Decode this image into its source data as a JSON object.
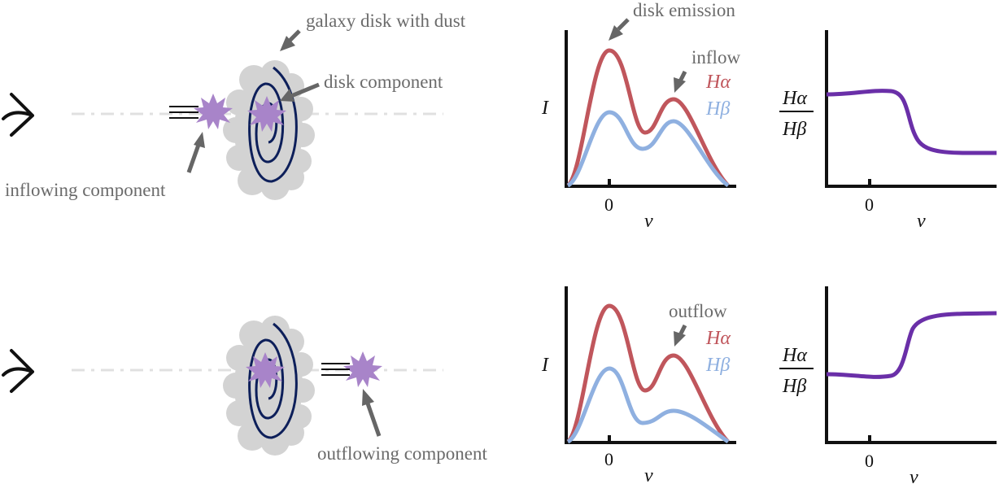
{
  "labels": {
    "galaxy_disk": "galaxy disk with dust",
    "disk_component": "disk component",
    "inflowing_component": "inflowing component",
    "outflowing_component": "outflowing component",
    "disk_emission": "disk emission",
    "inflow": "inflow",
    "outflow": "outflow"
  },
  "math": {
    "intensity": "I",
    "velocity": "v",
    "zero": "0",
    "halpha": "Hα",
    "hbeta": "Hβ"
  },
  "colors": {
    "halpha": "#c0565c",
    "hbeta": "#8fb0e0",
    "ratio": "#6a2fa8",
    "clump": "#a884c9",
    "galaxy": "#d3d3d3",
    "spiral": "#0d1f5a",
    "annotation": "#666666"
  },
  "icons": {
    "observer": "eye-icon",
    "clump": "starburst-icon"
  }
}
